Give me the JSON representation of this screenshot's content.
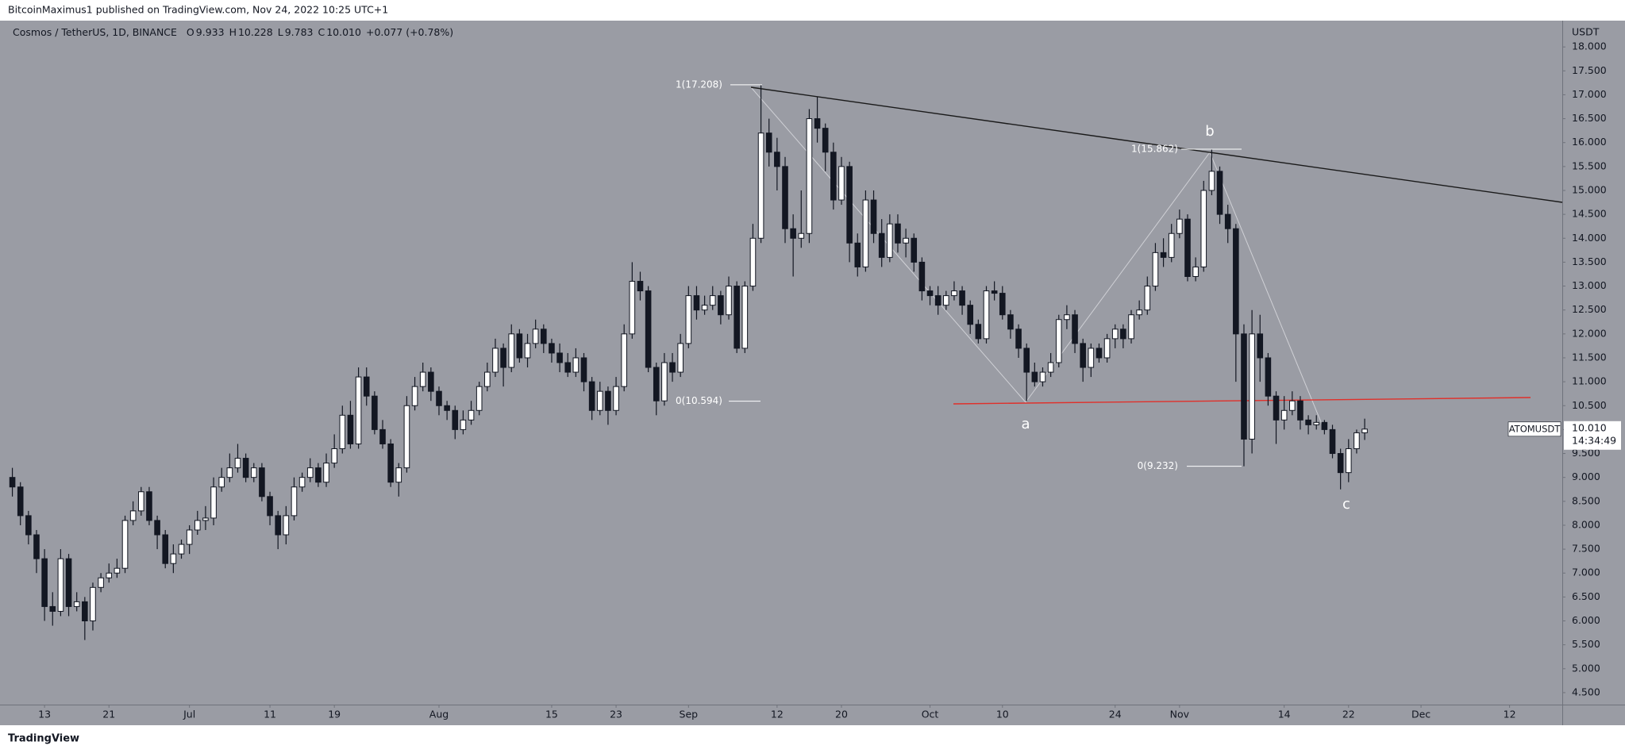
{
  "header": {
    "published": "BitcoinMaximus1 published on TradingView.com, Nov 24, 2022 10:25 UTC+1",
    "footer": "TradingView"
  },
  "chart_data": {
    "type": "candlestick",
    "symbol": "Cosmos / TetherUS, 1D, BINANCE",
    "ohlc_legend": [
      {
        "key": "O",
        "value": "9.933"
      },
      {
        "key": "H",
        "value": "10.228"
      },
      {
        "key": "L",
        "value": "9.783"
      },
      {
        "key": "C",
        "value": "10.010"
      }
    ],
    "change": "+0.077 (+0.78%)",
    "currency": "USDT",
    "ticker": "ATOMUSDT",
    "last_price": {
      "value": 10.01,
      "label": "10.010"
    },
    "countdown": "14:34:49",
    "up_color": "#ffffff",
    "down_color": "#131722",
    "grid": false,
    "ylim": [
      4.25,
      18.55
    ],
    "yticks": [
      {
        "value": 4.5,
        "label": "4.500"
      },
      {
        "value": 5,
        "label": "5.000"
      },
      {
        "value": 5.5,
        "label": "5.500"
      },
      {
        "value": 6,
        "label": "6.000"
      },
      {
        "value": 6.5,
        "label": "6.500"
      },
      {
        "value": 7,
        "label": "7.000"
      },
      {
        "value": 7.5,
        "label": "7.500"
      },
      {
        "value": 8,
        "label": "8.000"
      },
      {
        "value": 8.5,
        "label": "8.500"
      },
      {
        "value": 9,
        "label": "9.000"
      },
      {
        "value": 9.5,
        "label": "9.500"
      },
      {
        "value": 10,
        "label": "10.000"
      },
      {
        "value": 10.5,
        "label": "10.500"
      },
      {
        "value": 11,
        "label": "11.000"
      },
      {
        "value": 11.5,
        "label": "11.500"
      },
      {
        "value": 12,
        "label": "12.000"
      },
      {
        "value": 12.5,
        "label": "12.500"
      },
      {
        "value": 13,
        "label": "13.000"
      },
      {
        "value": 13.5,
        "label": "13.500"
      },
      {
        "value": 14,
        "label": "14.000"
      },
      {
        "value": 14.5,
        "label": "14.500"
      },
      {
        "value": 15,
        "label": "15.000"
      },
      {
        "value": 15.5,
        "label": "15.500"
      },
      {
        "value": 16,
        "label": "16.000"
      },
      {
        "value": 16.5,
        "label": "16.500"
      },
      {
        "value": 17,
        "label": "17.000"
      },
      {
        "value": 17.5,
        "label": "17.500"
      },
      {
        "value": 18,
        "label": "18.000"
      }
    ],
    "categories": [
      null,
      null,
      null,
      null,
      "13",
      null,
      null,
      null,
      null,
      null,
      null,
      null,
      "21",
      null,
      null,
      null,
      null,
      null,
      null,
      null,
      null,
      null,
      "Jul",
      null,
      null,
      null,
      null,
      null,
      null,
      null,
      null,
      null,
      "11",
      null,
      null,
      null,
      null,
      null,
      null,
      null,
      "19",
      null,
      null,
      null,
      null,
      null,
      null,
      null,
      null,
      null,
      null,
      null,
      null,
      "Aug",
      null,
      null,
      null,
      null,
      null,
      null,
      null,
      null,
      null,
      null,
      null,
      null,
      null,
      "15",
      null,
      null,
      null,
      null,
      null,
      null,
      null,
      "23",
      null,
      null,
      null,
      null,
      null,
      null,
      null,
      null,
      "Sep",
      null,
      null,
      null,
      null,
      null,
      null,
      null,
      null,
      null,
      null,
      "12",
      null,
      null,
      null,
      null,
      null,
      null,
      null,
      "20",
      null,
      null,
      null,
      null,
      null,
      null,
      null,
      null,
      null,
      null,
      "Oct",
      null,
      null,
      null,
      null,
      null,
      null,
      null,
      null,
      "10",
      null,
      null,
      null,
      null,
      null,
      null,
      null,
      null,
      null,
      null,
      null,
      null,
      null,
      "24",
      null,
      null,
      null,
      null,
      null,
      null,
      null,
      "Nov",
      null,
      null,
      null,
      null,
      null,
      null,
      null,
      null,
      null,
      null,
      null,
      null,
      "14",
      null,
      null,
      null,
      null,
      null,
      null,
      null,
      "22",
      null,
      null,
      null,
      null,
      null,
      null,
      null,
      null,
      "Dec",
      null,
      null,
      null,
      null,
      null,
      null,
      null,
      null,
      null,
      null,
      "12",
      null,
      null,
      null,
      null,
      null,
      null
    ],
    "open": [
      9.0,
      8.8,
      8.2,
      7.8,
      7.3,
      6.3,
      6.2,
      7.3,
      6.3,
      6.4,
      6.0,
      6.7,
      6.9,
      7.0,
      7.1,
      8.1,
      8.3,
      8.7,
      8.1,
      7.8,
      7.2,
      7.4,
      7.6,
      7.9,
      8.1,
      8.15,
      8.8,
      9.0,
      9.2,
      9.4,
      9.0,
      9.2,
      8.6,
      8.2,
      7.8,
      8.2,
      8.8,
      9.0,
      9.2,
      8.9,
      9.3,
      9.6,
      10.3,
      9.7,
      11.1,
      10.7,
      10.0,
      9.7,
      8.9,
      9.2,
      10.5,
      10.9,
      11.2,
      10.8,
      10.5,
      10.4,
      10.0,
      10.2,
      10.4,
      10.9,
      11.2,
      11.7,
      11.3,
      12.0,
      11.5,
      11.8,
      12.1,
      11.8,
      11.6,
      11.4,
      11.2,
      11.5,
      11.0,
      10.4,
      10.8,
      10.4,
      10.9,
      12.0,
      13.1,
      12.9,
      11.3,
      10.6,
      11.4,
      11.2,
      11.8,
      12.8,
      12.5,
      12.6,
      12.8,
      12.4,
      13.0,
      11.7,
      13.0,
      14.0,
      16.2,
      15.8,
      15.5,
      14.2,
      14.0,
      14.1,
      16.5,
      16.3,
      15.8,
      14.8,
      15.5,
      13.9,
      13.4,
      14.8,
      14.1,
      13.6,
      14.3,
      13.9,
      14.0,
      13.5,
      12.9,
      12.8,
      12.6,
      12.8,
      12.9,
      12.6,
      12.2,
      11.9,
      12.9,
      12.85,
      12.4,
      12.1,
      11.7,
      11.2,
      11.0,
      11.2,
      11.4,
      12.3,
      12.4,
      11.8,
      11.3,
      11.7,
      11.5,
      11.9,
      12.1,
      11.9,
      12.4,
      12.5,
      13.0,
      13.7,
      13.6,
      14.1,
      14.4,
      13.2,
      13.4,
      15.0,
      15.4,
      14.5,
      14.2,
      12.0,
      9.8,
      12.0,
      11.5,
      10.7,
      10.2,
      10.4,
      10.6,
      10.2,
      10.1,
      10.15,
      10.0,
      9.5,
      9.1,
      9.6,
      9.933,
      null,
      null,
      null,
      null,
      null,
      null,
      null,
      null,
      null,
      null,
      null,
      null,
      null,
      null,
      null,
      null,
      null,
      null,
      null,
      null,
      null,
      null,
      null,
      null
    ],
    "high": [
      9.2,
      8.9,
      8.3,
      7.9,
      7.5,
      6.6,
      7.5,
      7.4,
      6.6,
      6.5,
      6.8,
      7.0,
      7.2,
      7.3,
      8.2,
      8.5,
      8.8,
      8.8,
      8.2,
      7.9,
      7.6,
      7.7,
      8.0,
      8.3,
      8.4,
      9.0,
      9.2,
      9.5,
      9.7,
      9.5,
      9.3,
      9.3,
      8.7,
      8.3,
      8.4,
      9.0,
      9.1,
      9.4,
      9.3,
      9.5,
      9.9,
      10.5,
      10.6,
      11.3,
      11.3,
      10.8,
      10.2,
      9.8,
      9.3,
      10.7,
      11.1,
      11.4,
      11.3,
      10.9,
      10.6,
      10.5,
      10.4,
      10.6,
      11.0,
      11.4,
      11.9,
      11.8,
      12.2,
      12.1,
      12.0,
      12.3,
      12.2,
      11.9,
      11.8,
      11.6,
      11.7,
      11.6,
      11.1,
      11.0,
      10.9,
      11.1,
      12.2,
      13.5,
      13.3,
      13.0,
      11.4,
      11.6,
      11.6,
      12.0,
      13.0,
      13.0,
      12.8,
      13.0,
      12.9,
      13.2,
      13.1,
      13.1,
      14.3,
      17.208,
      16.5,
      16.1,
      15.7,
      14.5,
      15.0,
      16.7,
      16.95,
      16.4,
      16.0,
      15.7,
      15.6,
      14.1,
      15.0,
      15.0,
      14.4,
      14.5,
      14.5,
      14.2,
      14.1,
      13.6,
      13.0,
      13.0,
      12.9,
      13.1,
      13.0,
      12.7,
      12.3,
      13.0,
      13.1,
      13.0,
      12.5,
      12.2,
      11.8,
      11.4,
      11.3,
      11.6,
      12.4,
      12.6,
      12.5,
      11.9,
      11.8,
      11.8,
      12.0,
      12.2,
      12.2,
      12.5,
      12.7,
      13.2,
      13.9,
      14.0,
      14.3,
      14.6,
      14.5,
      13.6,
      15.2,
      15.862,
      15.5,
      14.7,
      14.3,
      12.2,
      12.5,
      12.4,
      11.6,
      10.8,
      10.7,
      10.8,
      10.7,
      10.3,
      10.3,
      10.2,
      10.1,
      9.6,
      9.8,
      10.0,
      10.228,
      null,
      null,
      null,
      null,
      null,
      null,
      null,
      null,
      null,
      null,
      null,
      null,
      null,
      null,
      null,
      null,
      null,
      null,
      null,
      null,
      null,
      null,
      null,
      null
    ],
    "low": [
      8.6,
      8.0,
      7.6,
      7.0,
      6.0,
      5.9,
      6.1,
      6.1,
      6.2,
      5.6,
      5.8,
      6.6,
      6.8,
      6.9,
      7.0,
      8.0,
      8.2,
      8.0,
      7.5,
      7.1,
      7.0,
      7.3,
      7.4,
      7.8,
      7.9,
      8.0,
      8.7,
      8.9,
      9.1,
      8.9,
      8.9,
      8.5,
      8.0,
      7.5,
      7.6,
      8.1,
      8.7,
      8.9,
      8.8,
      8.8,
      9.2,
      9.5,
      9.6,
      9.6,
      10.5,
      9.9,
      9.6,
      8.8,
      8.6,
      9.1,
      10.4,
      10.8,
      10.6,
      10.3,
      10.2,
      9.8,
      9.9,
      10.1,
      10.3,
      10.8,
      11.1,
      10.9,
      11.2,
      11.4,
      11.3,
      11.7,
      11.6,
      11.4,
      11.2,
      11.1,
      11.1,
      10.8,
      10.2,
      10.3,
      10.1,
      10.3,
      10.8,
      11.9,
      12.7,
      11.2,
      10.3,
      10.5,
      11.0,
      11.1,
      11.7,
      12.3,
      12.4,
      12.5,
      12.2,
      12.3,
      11.6,
      11.6,
      12.9,
      13.9,
      15.5,
      15.0,
      13.9,
      13.2,
      13.8,
      13.9,
      16.0,
      15.4,
      14.6,
      14.7,
      13.5,
      13.2,
      13.3,
      13.9,
      13.4,
      13.5,
      13.7,
      13.6,
      13.3,
      12.7,
      12.6,
      12.4,
      12.5,
      12.7,
      12.4,
      12.0,
      11.8,
      11.8,
      12.7,
      12.3,
      11.9,
      11.5,
      10.594,
      10.9,
      10.9,
      11.1,
      11.3,
      12.1,
      11.6,
      11.0,
      11.1,
      11.4,
      11.4,
      11.7,
      11.7,
      11.8,
      12.3,
      12.4,
      12.9,
      13.4,
      13.5,
      14.0,
      13.1,
      13.1,
      13.3,
      14.9,
      14.3,
      13.9,
      11.0,
      9.232,
      9.5,
      11.0,
      10.5,
      9.7,
      10.0,
      10.3,
      10.0,
      9.9,
      10.0,
      9.9,
      9.4,
      8.75,
      8.9,
      9.5,
      9.783,
      null,
      null,
      null,
      null,
      null,
      null,
      null,
      null,
      null,
      null,
      null,
      null,
      null,
      null,
      null,
      null,
      null,
      null,
      null,
      null,
      null,
      null,
      null,
      null
    ],
    "close": [
      8.8,
      8.2,
      7.8,
      7.3,
      6.3,
      6.2,
      7.3,
      6.3,
      6.4,
      6.0,
      6.7,
      6.9,
      7.0,
      7.1,
      8.1,
      8.3,
      8.7,
      8.1,
      7.8,
      7.2,
      7.4,
      7.6,
      7.9,
      8.1,
      8.15,
      8.8,
      9.0,
      9.2,
      9.4,
      9.0,
      9.2,
      8.6,
      8.2,
      7.8,
      8.2,
      8.8,
      9.0,
      9.2,
      8.9,
      9.3,
      9.6,
      10.3,
      9.7,
      11.1,
      10.7,
      10.0,
      9.7,
      8.9,
      9.2,
      10.5,
      10.9,
      11.2,
      10.8,
      10.5,
      10.4,
      10.0,
      10.2,
      10.4,
      10.9,
      11.2,
      11.7,
      11.3,
      12.0,
      11.5,
      11.8,
      12.1,
      11.8,
      11.6,
      11.4,
      11.2,
      11.5,
      11.0,
      10.4,
      10.8,
      10.4,
      10.9,
      12.0,
      13.1,
      12.9,
      11.3,
      10.6,
      11.4,
      11.2,
      11.8,
      12.8,
      12.5,
      12.6,
      12.8,
      12.4,
      13.0,
      11.7,
      13.0,
      14.0,
      16.2,
      15.8,
      15.5,
      14.2,
      14.0,
      14.1,
      16.5,
      16.3,
      15.8,
      14.8,
      15.5,
      13.9,
      13.4,
      14.8,
      14.1,
      13.6,
      14.3,
      13.9,
      14.0,
      13.5,
      12.9,
      12.8,
      12.6,
      12.8,
      12.9,
      12.6,
      12.2,
      11.9,
      12.9,
      12.85,
      12.4,
      12.1,
      11.7,
      11.2,
      11.0,
      11.2,
      11.4,
      12.3,
      12.4,
      11.8,
      11.3,
      11.7,
      11.5,
      11.9,
      12.1,
      11.9,
      12.4,
      12.5,
      13.0,
      13.7,
      13.6,
      14.1,
      14.4,
      13.2,
      13.4,
      15.0,
      15.4,
      14.5,
      14.2,
      12.0,
      9.8,
      12.0,
      11.5,
      10.7,
      10.2,
      10.4,
      10.6,
      10.2,
      10.1,
      10.15,
      10.0,
      9.5,
      9.1,
      9.6,
      9.933,
      10.01,
      null,
      null,
      null,
      null,
      null,
      null,
      null,
      null,
      null,
      null,
      null,
      null,
      null,
      null,
      null,
      null,
      null,
      null,
      null,
      null,
      null,
      null,
      null,
      null
    ],
    "fib_labels": [
      {
        "value": 17.208,
        "label": "1(17.208)"
      },
      {
        "value": 10.594,
        "label": "0(10.594)"
      },
      {
        "value": 15.862,
        "label": "1(15.862)"
      },
      {
        "value": 9.232,
        "label": "0(9.232)"
      }
    ],
    "wave_labels": [
      "a",
      "b",
      "c"
    ]
  }
}
